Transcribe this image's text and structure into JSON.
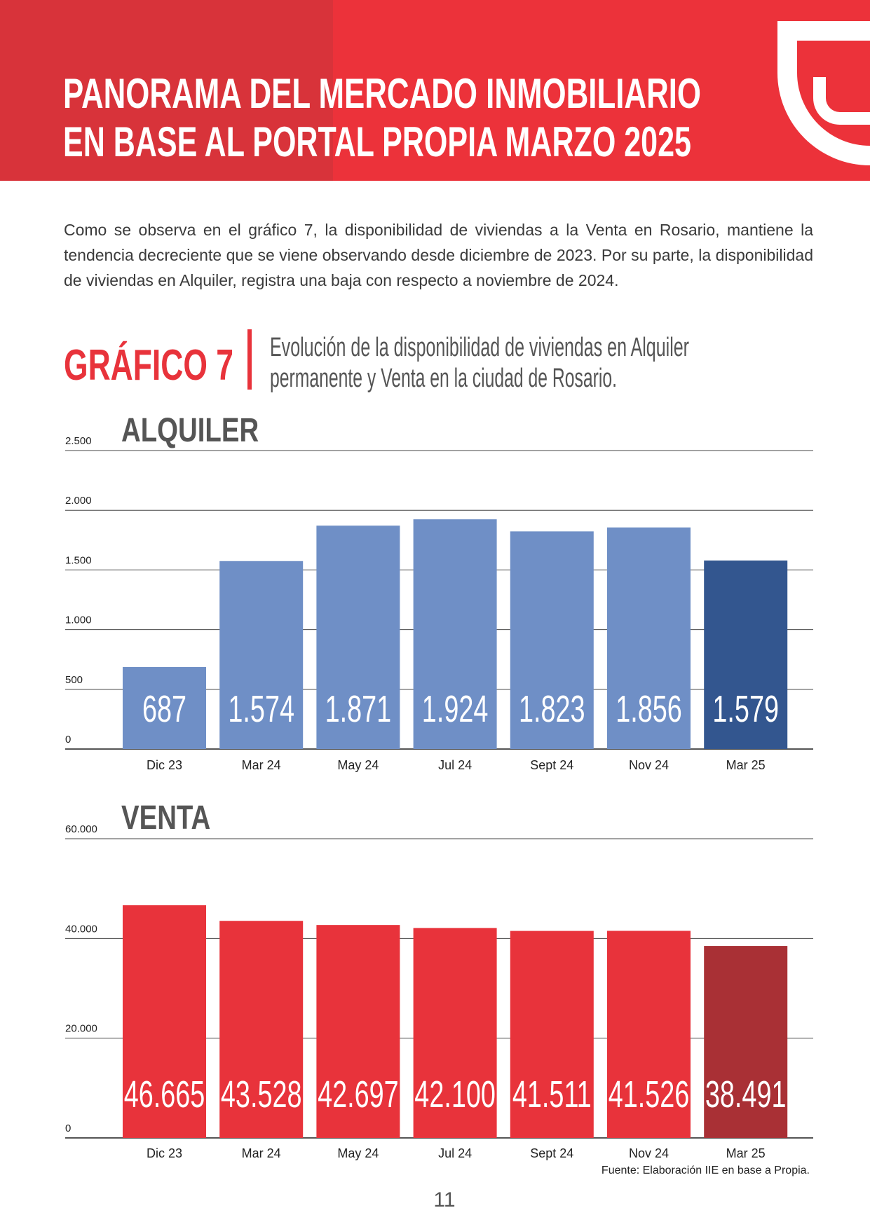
{
  "header": {
    "title_lines": [
      "PANORAMA DEL MERCADO INMOBILIARIO",
      "EN BASE AL PORTAL PROPIA MARZO 2025"
    ]
  },
  "paragraph": "Como se observa en el gráfico 7, la disponibilidad de viviendas a la Venta en Rosario, mantiene la tendencia decreciente que se viene observando desde diciembre de 2023. Por su parte, la disponibilidad de viviendas en Alquiler, registra una baja con respecto a noviembre de 2024.",
  "figure": {
    "label": "GRÁFICO 7",
    "caption_lines": [
      "Evolución de la disponibilidad de viviendas en Alquiler",
      "permanente y Venta en la ciudad de Rosario."
    ]
  },
  "chart_data": [
    {
      "type": "bar",
      "title": "ALQUILER",
      "categories": [
        "Dic 23",
        "Mar 24",
        "May 24",
        "Jul 24",
        "Sept 24",
        "Nov 24",
        "Mar 25"
      ],
      "values": [
        687,
        1574,
        1871,
        1924,
        1823,
        1856,
        1579
      ],
      "value_labels": [
        "687",
        "1.574",
        "1.871",
        "1.924",
        "1.823",
        "1.856",
        "1.579"
      ],
      "colors": [
        "#6f8fc6",
        "#6f8fc6",
        "#6f8fc6",
        "#6f8fc6",
        "#6f8fc6",
        "#6f8fc6",
        "#33568f"
      ],
      "ylim": [
        0,
        2500
      ],
      "yticks": [
        0,
        500,
        {
          "value": 1000,
          "label": "1.000"
        },
        {
          "value": 1500,
          "label": "1.500"
        },
        {
          "value": 2000,
          "label": "2.000"
        },
        {
          "value": 2500,
          "label": "2.500"
        }
      ],
      "grid": true
    },
    {
      "type": "bar",
      "title": "VENTA",
      "categories": [
        "Dic 23",
        "Mar 24",
        "May 24",
        "Jul 24",
        "Sept 24",
        "Nov 24",
        "Mar 25"
      ],
      "values": [
        46665,
        43528,
        42697,
        42100,
        41511,
        41526,
        38491
      ],
      "value_labels": [
        "46.665",
        "43.528",
        "42.697",
        "42.100",
        "41.511",
        "41.526",
        "38.491"
      ],
      "colors": [
        "#e8333b",
        "#e8333b",
        "#e8333b",
        "#e8333b",
        "#e8333b",
        "#e8333b",
        "#a93035"
      ],
      "ylim": [
        0,
        60000
      ],
      "yticks": [
        0,
        {
          "value": 20000,
          "label": "20.000"
        },
        {
          "value": 40000,
          "label": "40.000"
        },
        {
          "value": 60000,
          "label": "60.000"
        }
      ],
      "grid": true
    }
  ],
  "source": "Fuente: Elaboración IIE en base a Propia.",
  "page_number": "11"
}
